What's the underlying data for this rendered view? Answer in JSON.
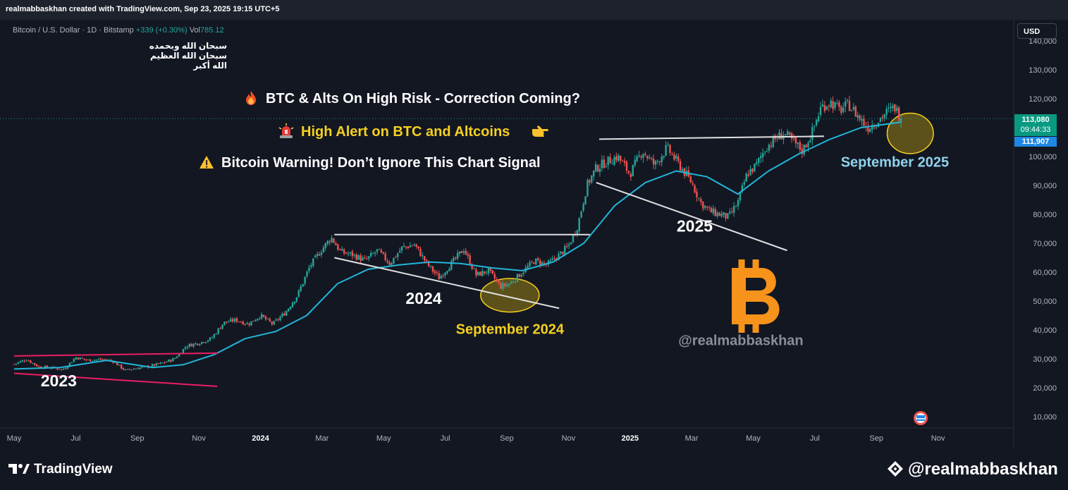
{
  "header": {
    "credit": "realmabbaskhan created with TradingView.com, Sep 23, 2025 19:15 UTC+5"
  },
  "symbol_bar": {
    "name": "Bitcoin / U.S. Dollar · 1D · Bitstamp",
    "change": "+339 (+0.30%)",
    "volume_label": "Vol",
    "volume_value": "785.12"
  },
  "currency_button": "USD",
  "arabic_text": [
    "سبحان الله وبحمده",
    "سبحان الله العظيم",
    "الله أكبر"
  ],
  "headlines": {
    "line1": "BTC & Alts On High Risk - Correction Coming?",
    "line2": "High Alert on BTC and Altcoins",
    "line3": "Bitcoin Warning! Don’t Ignore This Chart Signal"
  },
  "price_tags": {
    "last_price": "113,080",
    "countdown": "09:44:33",
    "moving_average": "111,907"
  },
  "footer": {
    "brand": "TradingView",
    "handle": "@realmabbaskhan"
  },
  "colors": {
    "background": "#131722",
    "up_candle": "#26a69a",
    "down_candle": "#ef5350",
    "moving_average": "#22b5d8",
    "trendline": "#e0e0e0",
    "channel_line": "#e91e63",
    "highlight": "#f5d020",
    "bitcoin": "#f7931a"
  },
  "chart_data": {
    "type": "candlestick",
    "title": "Bitcoin / U.S. Dollar · 1D · Bitstamp",
    "y_axis": {
      "ticks": [
        "10,000",
        "20,000",
        "30,000",
        "40,000",
        "50,000",
        "60,000",
        "70,000",
        "80,000",
        "90,000",
        "100,000",
        "110,000",
        "120,000",
        "130,000",
        "140,000"
      ],
      "ylim": [
        6000,
        143000
      ]
    },
    "x_axis": {
      "ticks": [
        "May",
        "Jul",
        "Sep",
        "Nov",
        "2024",
        "Mar",
        "May",
        "Jul",
        "Sep",
        "Nov",
        "2025",
        "Mar",
        "May",
        "Jul",
        "Sep",
        "Nov"
      ],
      "tick_values": [
        0,
        2,
        4,
        6,
        8,
        10,
        12,
        14,
        16,
        18,
        20,
        22,
        24,
        26,
        28,
        30
      ],
      "range": [
        0,
        31.2
      ]
    },
    "price_path": [
      [
        0,
        28200
      ],
      [
        0.4,
        29800
      ],
      [
        0.8,
        27300
      ],
      [
        1.2,
        27000
      ],
      [
        1.6,
        26300
      ],
      [
        2.0,
        30500
      ],
      [
        2.4,
        29500
      ],
      [
        2.8,
        29800
      ],
      [
        3.2,
        29300
      ],
      [
        3.6,
        26000
      ],
      [
        4.0,
        26800
      ],
      [
        4.4,
        27500
      ],
      [
        4.8,
        28500
      ],
      [
        5.2,
        30000
      ],
      [
        5.6,
        34500
      ],
      [
        6.0,
        35500
      ],
      [
        6.4,
        37000
      ],
      [
        6.8,
        42500
      ],
      [
        7.2,
        43500
      ],
      [
        7.6,
        42000
      ],
      [
        8.0,
        45000
      ],
      [
        8.4,
        42000
      ],
      [
        8.8,
        46000
      ],
      [
        9.2,
        52000
      ],
      [
        9.6,
        62000
      ],
      [
        10.0,
        68000
      ],
      [
        10.3,
        72000
      ],
      [
        10.6,
        67000
      ],
      [
        11.0,
        66000
      ],
      [
        11.4,
        64000
      ],
      [
        11.8,
        67500
      ],
      [
        12.2,
        63000
      ],
      [
        12.6,
        68500
      ],
      [
        13.0,
        69500
      ],
      [
        13.4,
        63000
      ],
      [
        13.8,
        58000
      ],
      [
        14.2,
        63000
      ],
      [
        14.6,
        68000
      ],
      [
        15.0,
        59000
      ],
      [
        15.4,
        60500
      ],
      [
        15.8,
        55000
      ],
      [
        16.1,
        56000
      ],
      [
        16.5,
        60000
      ],
      [
        16.9,
        64000
      ],
      [
        17.3,
        62500
      ],
      [
        17.7,
        66000
      ],
      [
        18.0,
        69000
      ],
      [
        18.3,
        76000
      ],
      [
        18.6,
        90000
      ],
      [
        18.9,
        96000
      ],
      [
        19.2,
        98000
      ],
      [
        19.6,
        100000
      ],
      [
        20.0,
        94000
      ],
      [
        20.4,
        102000
      ],
      [
        20.8,
        97000
      ],
      [
        21.2,
        103000
      ],
      [
        21.6,
        97000
      ],
      [
        22.0,
        91000
      ],
      [
        22.3,
        84000
      ],
      [
        22.6,
        81000
      ],
      [
        22.9,
        80000
      ],
      [
        23.2,
        79000
      ],
      [
        23.5,
        84000
      ],
      [
        23.8,
        94000
      ],
      [
        24.1,
        97000
      ],
      [
        24.4,
        103000
      ],
      [
        24.7,
        106000
      ],
      [
        25.0,
        108000
      ],
      [
        25.3,
        105000
      ],
      [
        25.6,
        102000
      ],
      [
        25.9,
        108000
      ],
      [
        26.2,
        117000
      ],
      [
        26.5,
        119000
      ],
      [
        26.8,
        116000
      ],
      [
        27.1,
        118000
      ],
      [
        27.4,
        114000
      ],
      [
        27.7,
        110000
      ],
      [
        28.0,
        112000
      ],
      [
        28.3,
        115000
      ],
      [
        28.6,
        117000
      ],
      [
        28.8,
        113080
      ]
    ],
    "moving_average": [
      [
        0,
        26500
      ],
      [
        1.5,
        27000
      ],
      [
        3,
        29500
      ],
      [
        4.5,
        27000
      ],
      [
        5.5,
        28000
      ],
      [
        6.5,
        31500
      ],
      [
        7.5,
        37000
      ],
      [
        8.5,
        39500
      ],
      [
        9.5,
        45000
      ],
      [
        10.5,
        56000
      ],
      [
        11.5,
        61000
      ],
      [
        12.5,
        62500
      ],
      [
        13.5,
        63500
      ],
      [
        14.5,
        63000
      ],
      [
        15.5,
        61500
      ],
      [
        16.5,
        60500
      ],
      [
        17.5,
        63500
      ],
      [
        18.5,
        70000
      ],
      [
        19.5,
        83000
      ],
      [
        20.5,
        91000
      ],
      [
        21.5,
        95000
      ],
      [
        22.5,
        93000
      ],
      [
        23.5,
        87000
      ],
      [
        24.5,
        95000
      ],
      [
        25.5,
        101000
      ],
      [
        26.5,
        106000
      ],
      [
        27.5,
        110000
      ],
      [
        28.8,
        111907
      ]
    ],
    "channel_lines": [
      {
        "from": [
          0,
          31000
        ],
        "to": [
          6.6,
          32000
        ]
      },
      {
        "from": [
          0,
          25000
        ],
        "to": [
          6.6,
          20500
        ]
      }
    ],
    "trendlines": [
      {
        "from": [
          10.4,
          73000
        ],
        "to": [
          18.7,
          73000
        ]
      },
      {
        "from": [
          10.4,
          65000
        ],
        "to": [
          17.7,
          47500
        ]
      },
      {
        "from": [
          19.0,
          106000
        ],
        "to": [
          26.3,
          107000
        ]
      },
      {
        "from": [
          18.9,
          91000
        ],
        "to": [
          25.1,
          67500
        ]
      }
    ],
    "highlight_zones": [
      {
        "center": [
          16.1,
          52000
        ],
        "radius_x": 0.95,
        "radius_y": 5800
      },
      {
        "center": [
          29.1,
          108000
        ],
        "radius_x": 0.75,
        "radius_y": 7000
      }
    ],
    "annotations": [
      {
        "text": "2023",
        "x": 1.45,
        "y": 20500,
        "color": "#ffffff"
      },
      {
        "text": "2024",
        "x": 13.3,
        "y": 49000,
        "color": "#ffffff"
      },
      {
        "text": "September 2024",
        "x": 16.1,
        "y": 38700,
        "color": "#f5d020"
      },
      {
        "text": "2025",
        "x": 22.1,
        "y": 74000,
        "color": "#ffffff"
      },
      {
        "text": "September 2025",
        "x": 28.6,
        "y": 96500,
        "color": "#8fd3ec"
      },
      {
        "text": "@realmabbaskhan",
        "x": 23.6,
        "y": 34800,
        "color": "#8a8e99"
      }
    ],
    "current_price": 113080,
    "grid": false
  }
}
